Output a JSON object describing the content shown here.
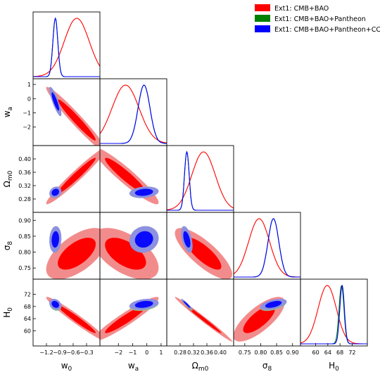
{
  "chart_data": {
    "type": "triangle",
    "params": [
      {
        "key": "w0",
        "label": "w",
        "sub": "0",
        "range": [
          -1.5,
          0.0
        ],
        "ticks": [
          -1.2,
          -0.9,
          -0.6,
          -0.3
        ],
        "tick_labels": [
          "−1.2",
          "−0.9",
          "−0.6",
          "−0.3"
        ]
      },
      {
        "key": "wa",
        "label": "w",
        "sub": "a",
        "range": [
          -3.3,
          1.4
        ],
        "ticks": [
          -2,
          -1,
          0,
          1
        ],
        "tick_labels": [
          "−2",
          "−1",
          "0",
          "1"
        ]
      },
      {
        "key": "om",
        "label": "Ω",
        "sub": "m0",
        "range": [
          0.24,
          0.44
        ],
        "ticks": [
          0.28,
          0.32,
          0.36,
          0.4
        ],
        "tick_labels": [
          "0.28",
          "0.32",
          "0.36",
          "0.40"
        ]
      },
      {
        "key": "s8",
        "label": "σ",
        "sub": "8",
        "range": [
          0.715,
          0.925
        ],
        "ticks": [
          0.75,
          0.8,
          0.85,
          0.9
        ],
        "tick_labels": [
          "0.75",
          "0.80",
          "0.85",
          "0.90"
        ]
      },
      {
        "key": "h0",
        "label": "H",
        "sub": "0",
        "range": [
          55,
          77
        ],
        "ticks": [
          60,
          64,
          68,
          72
        ],
        "tick_labels": [
          "60",
          "64",
          "68",
          "72"
        ]
      }
    ],
    "series": [
      {
        "name": "Ext1: CMB+BAO",
        "color": "#ff0000",
        "light": "#f28c8c",
        "mean": [
          -0.52,
          -1.5,
          0.35,
          0.795,
          63.8
        ],
        "sd": [
          0.28,
          0.95,
          0.035,
          0.033,
          3.0
        ]
      },
      {
        "name": "Ext1: CMB+BAO+Pantheon",
        "color": "#008000",
        "light": "#8fc98f",
        "mean": [
          -1.0,
          -0.2,
          0.3,
          0.84,
          68.5
        ],
        "sd": [
          0.055,
          0.42,
          0.007,
          0.017,
          0.8
        ]
      },
      {
        "name": "Ext1: CMB+BAO+Pantheon+CC",
        "color": "#0000ff",
        "light": "#8c8ce6",
        "mean": [
          -1.0,
          -0.2,
          0.3,
          0.84,
          68.7
        ],
        "sd": [
          0.055,
          0.42,
          0.007,
          0.017,
          0.75
        ]
      }
    ],
    "correlations": [
      {
        "series": 0,
        "pairs": {
          "w0-wa": -0.97,
          "w0-om": 0.97,
          "wa-om": -0.94,
          "w0-s8": 0.6,
          "wa-s8": -0.55,
          "om-s8": -0.8,
          "w0-h0": -0.97,
          "wa-h0": 0.94,
          "om-h0": -0.99,
          "s8-h0": 0.75
        }
      },
      {
        "series": 1,
        "pairs": {
          "w0-wa": -0.85,
          "w0-om": 0.2,
          "wa-om": 0.2,
          "w0-s8": 0.1,
          "wa-s8": 0.1,
          "om-s8": -0.5,
          "w0-h0": -0.25,
          "wa-h0": 0.3,
          "om-h0": -0.95,
          "s8-h0": 0.5
        }
      },
      {
        "series": 2,
        "pairs": {
          "w0-wa": -0.85,
          "w0-om": 0.2,
          "wa-om": 0.2,
          "w0-s8": 0.1,
          "wa-s8": 0.1,
          "om-s8": -0.5,
          "w0-h0": -0.25,
          "wa-h0": 0.3,
          "om-h0": -0.95,
          "s8-h0": 0.5
        }
      }
    ],
    "legend_position": "top-right"
  }
}
